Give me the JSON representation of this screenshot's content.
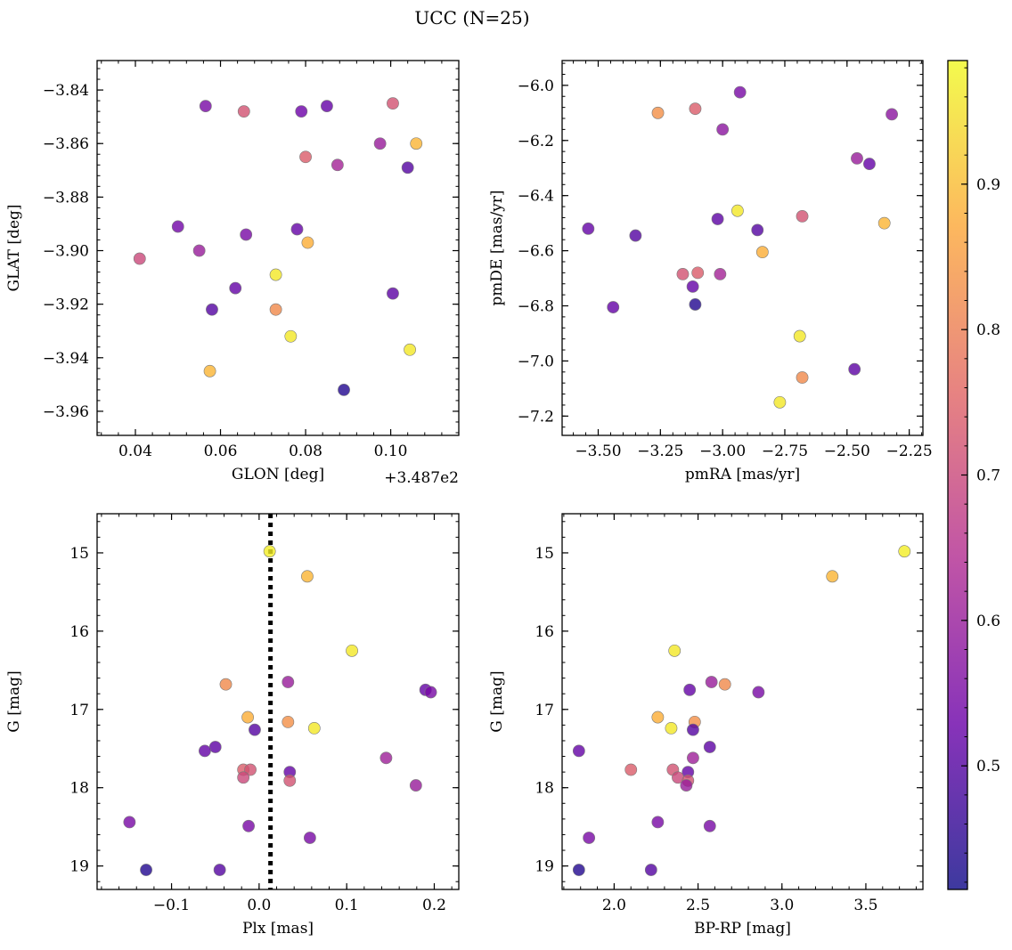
{
  "figure": {
    "title": "UCC (N=25)",
    "offset_label": "+3.487e2"
  },
  "colorbar": {
    "range": [
      0.415,
      0.985
    ],
    "ticks": [
      0.5,
      0.6,
      0.7,
      0.8,
      0.9
    ],
    "tick_labels": [
      "0.5",
      "0.6",
      "0.7",
      "0.8",
      "0.9"
    ],
    "colormap": [
      "#0d0887",
      "#6a00a8",
      "#b12a90",
      "#e16462",
      "#fca636",
      "#f0f921"
    ],
    "alpha": 0.8
  },
  "chart_data": [
    {
      "type": "scatter",
      "name": "glon-glat",
      "xlabel": "GLON [deg]",
      "ylabel": "GLAT [deg]",
      "xlim": [
        0.031,
        0.116
      ],
      "ylim": [
        -3.969,
        -3.829
      ],
      "y_inverted": false,
      "xticks": [
        0.04,
        0.06,
        0.08,
        0.1
      ],
      "xtick_labels": [
        "0.04",
        "0.06",
        "0.08",
        "0.10"
      ],
      "yticks": [
        -3.84,
        -3.86,
        -3.88,
        -3.9,
        -3.92,
        -3.94,
        -3.96
      ],
      "ytick_labels": [
        "−3.84",
        "−3.86",
        "−3.88",
        "−3.90",
        "−3.92",
        "−3.94",
        "−3.96"
      ],
      "points": [
        {
          "x": 0.0565,
          "y": -3.846,
          "c": 0.55
        },
        {
          "x": 0.0655,
          "y": -3.848,
          "c": 0.72
        },
        {
          "x": 0.079,
          "y": -3.848,
          "c": 0.53
        },
        {
          "x": 0.085,
          "y": -3.846,
          "c": 0.52
        },
        {
          "x": 0.1005,
          "y": -3.845,
          "c": 0.72
        },
        {
          "x": 0.0975,
          "y": -3.86,
          "c": 0.6
        },
        {
          "x": 0.106,
          "y": -3.86,
          "c": 0.89
        },
        {
          "x": 0.08,
          "y": -3.865,
          "c": 0.74
        },
        {
          "x": 0.0875,
          "y": -3.868,
          "c": 0.62
        },
        {
          "x": 0.104,
          "y": -3.869,
          "c": 0.5
        },
        {
          "x": 0.05,
          "y": -3.891,
          "c": 0.54
        },
        {
          "x": 0.066,
          "y": -3.894,
          "c": 0.55
        },
        {
          "x": 0.078,
          "y": -3.892,
          "c": 0.52
        },
        {
          "x": 0.0805,
          "y": -3.897,
          "c": 0.88
        },
        {
          "x": 0.055,
          "y": -3.9,
          "c": 0.6
        },
        {
          "x": 0.041,
          "y": -3.903,
          "c": 0.7
        },
        {
          "x": 0.073,
          "y": -3.909,
          "c": 0.96
        },
        {
          "x": 0.0635,
          "y": -3.914,
          "c": 0.52
        },
        {
          "x": 0.1005,
          "y": -3.916,
          "c": 0.51
        },
        {
          "x": 0.058,
          "y": -3.922,
          "c": 0.5
        },
        {
          "x": 0.073,
          "y": -3.922,
          "c": 0.82
        },
        {
          "x": 0.0765,
          "y": -3.932,
          "c": 0.96
        },
        {
          "x": 0.1045,
          "y": -3.937,
          "c": 0.96
        },
        {
          "x": 0.0575,
          "y": -3.945,
          "c": 0.89
        },
        {
          "x": 0.089,
          "y": -3.952,
          "c": 0.44
        }
      ]
    },
    {
      "type": "scatter",
      "name": "pmra-pmde",
      "xlabel": "pmRA [mas/yr]",
      "ylabel": "pmDE [mas/yr]",
      "xlim": [
        -3.645,
        -2.195
      ],
      "ylim": [
        -7.27,
        -5.91
      ],
      "y_inverted": false,
      "xticks": [
        -3.5,
        -3.25,
        -3.0,
        -2.75,
        -2.5,
        -2.25
      ],
      "xtick_labels": [
        "−3.50",
        "−3.25",
        "−3.00",
        "−2.75",
        "−2.50",
        "−2.25"
      ],
      "yticks": [
        -6.0,
        -6.2,
        -6.4,
        -6.6,
        -6.8,
        -7.0,
        -7.2
      ],
      "ytick_labels": [
        "−6.0",
        "−6.2",
        "−6.4",
        "−6.6",
        "−6.8",
        "−7.0",
        "−7.2"
      ],
      "points": [
        {
          "x": -2.93,
          "y": -6.025,
          "c": 0.55
        },
        {
          "x": -3.26,
          "y": -6.1,
          "c": 0.83
        },
        {
          "x": -3.11,
          "y": -6.085,
          "c": 0.74
        },
        {
          "x": -2.32,
          "y": -6.105,
          "c": 0.58
        },
        {
          "x": -3.0,
          "y": -6.16,
          "c": 0.58
        },
        {
          "x": -2.46,
          "y": -6.265,
          "c": 0.6
        },
        {
          "x": -2.41,
          "y": -6.285,
          "c": 0.52
        },
        {
          "x": -2.94,
          "y": -6.455,
          "c": 0.96
        },
        {
          "x": -2.68,
          "y": -6.475,
          "c": 0.72
        },
        {
          "x": -2.35,
          "y": -6.5,
          "c": 0.89
        },
        {
          "x": -3.02,
          "y": -6.485,
          "c": 0.51
        },
        {
          "x": -2.86,
          "y": -6.525,
          "c": 0.5
        },
        {
          "x": -3.54,
          "y": -6.52,
          "c": 0.52
        },
        {
          "x": -3.35,
          "y": -6.545,
          "c": 0.5
        },
        {
          "x": -2.84,
          "y": -6.605,
          "c": 0.88
        },
        {
          "x": -3.16,
          "y": -6.685,
          "c": 0.72
        },
        {
          "x": -3.1,
          "y": -6.68,
          "c": 0.74
        },
        {
          "x": -3.01,
          "y": -6.685,
          "c": 0.62
        },
        {
          "x": -3.12,
          "y": -6.73,
          "c": 0.52
        },
        {
          "x": -3.44,
          "y": -6.805,
          "c": 0.52
        },
        {
          "x": -3.11,
          "y": -6.795,
          "c": 0.44
        },
        {
          "x": -2.69,
          "y": -6.91,
          "c": 0.96
        },
        {
          "x": -2.47,
          "y": -7.03,
          "c": 0.51
        },
        {
          "x": -2.68,
          "y": -7.06,
          "c": 0.82
        },
        {
          "x": -2.77,
          "y": -7.15,
          "c": 0.96
        }
      ]
    },
    {
      "type": "scatter",
      "name": "plx-g",
      "xlabel": "Plx [mas]",
      "ylabel": "G [mag]",
      "xlim": [
        -0.185,
        0.228
      ],
      "ylim": [
        14.5,
        19.3
      ],
      "y_inverted": true,
      "vline": {
        "x": 0.013,
        "style": "dotted"
      },
      "xticks": [
        -0.1,
        0.0,
        0.1,
        0.2
      ],
      "xtick_labels": [
        "−0.1",
        "0.0",
        "0.1",
        "0.2"
      ],
      "yticks": [
        15,
        16,
        17,
        18,
        19
      ],
      "ytick_labels": [
        "15",
        "16",
        "17",
        "18",
        "19"
      ],
      "points": [
        {
          "x": 0.012,
          "y": 14.98,
          "c": 0.97
        },
        {
          "x": 0.055,
          "y": 15.3,
          "c": 0.89
        },
        {
          "x": 0.106,
          "y": 16.25,
          "c": 0.96
        },
        {
          "x": 0.033,
          "y": 16.65,
          "c": 0.6
        },
        {
          "x": -0.038,
          "y": 16.68,
          "c": 0.82
        },
        {
          "x": 0.19,
          "y": 16.75,
          "c": 0.52
        },
        {
          "x": 0.196,
          "y": 16.78,
          "c": 0.55
        },
        {
          "x": -0.013,
          "y": 17.1,
          "c": 0.88
        },
        {
          "x": 0.033,
          "y": 17.16,
          "c": 0.83
        },
        {
          "x": 0.063,
          "y": 17.24,
          "c": 0.96
        },
        {
          "x": -0.005,
          "y": 17.26,
          "c": 0.5
        },
        {
          "x": -0.05,
          "y": 17.48,
          "c": 0.51
        },
        {
          "x": -0.062,
          "y": 17.53,
          "c": 0.52
        },
        {
          "x": 0.145,
          "y": 17.62,
          "c": 0.61
        },
        {
          "x": -0.018,
          "y": 17.77,
          "c": 0.74
        },
        {
          "x": -0.01,
          "y": 17.77,
          "c": 0.72
        },
        {
          "x": 0.035,
          "y": 17.8,
          "c": 0.52
        },
        {
          "x": -0.018,
          "y": 17.87,
          "c": 0.7
        },
        {
          "x": 0.035,
          "y": 17.91,
          "c": 0.72
        },
        {
          "x": 0.179,
          "y": 17.97,
          "c": 0.6
        },
        {
          "x": -0.148,
          "y": 18.44,
          "c": 0.55
        },
        {
          "x": -0.012,
          "y": 18.49,
          "c": 0.55
        },
        {
          "x": 0.058,
          "y": 18.64,
          "c": 0.55
        },
        {
          "x": -0.129,
          "y": 19.05,
          "c": 0.44
        },
        {
          "x": -0.045,
          "y": 19.05,
          "c": 0.5
        }
      ]
    },
    {
      "type": "scatter",
      "name": "bprp-g",
      "xlabel": "BP-RP [mag]",
      "ylabel": "G [mag]",
      "xlim": [
        1.69,
        3.84
      ],
      "ylim": [
        14.5,
        19.3
      ],
      "y_inverted": true,
      "xticks": [
        2.0,
        2.5,
        3.0,
        3.5
      ],
      "xtick_labels": [
        "2.0",
        "2.5",
        "3.0",
        "3.5"
      ],
      "yticks": [
        15,
        16,
        17,
        18,
        19
      ],
      "ytick_labels": [
        "15",
        "16",
        "17",
        "18",
        "19"
      ],
      "points": [
        {
          "x": 3.73,
          "y": 14.98,
          "c": 0.97
        },
        {
          "x": 3.3,
          "y": 15.3,
          "c": 0.89
        },
        {
          "x": 2.36,
          "y": 16.25,
          "c": 0.96
        },
        {
          "x": 2.58,
          "y": 16.65,
          "c": 0.6
        },
        {
          "x": 2.66,
          "y": 16.68,
          "c": 0.82
        },
        {
          "x": 2.45,
          "y": 16.75,
          "c": 0.52
        },
        {
          "x": 2.86,
          "y": 16.78,
          "c": 0.55
        },
        {
          "x": 2.26,
          "y": 17.1,
          "c": 0.88
        },
        {
          "x": 2.48,
          "y": 17.16,
          "c": 0.83
        },
        {
          "x": 2.34,
          "y": 17.24,
          "c": 0.96
        },
        {
          "x": 2.47,
          "y": 17.26,
          "c": 0.5
        },
        {
          "x": 2.57,
          "y": 17.48,
          "c": 0.51
        },
        {
          "x": 1.79,
          "y": 17.53,
          "c": 0.52
        },
        {
          "x": 2.47,
          "y": 17.62,
          "c": 0.61
        },
        {
          "x": 2.1,
          "y": 17.77,
          "c": 0.74
        },
        {
          "x": 2.35,
          "y": 17.77,
          "c": 0.72
        },
        {
          "x": 2.44,
          "y": 17.8,
          "c": 0.52
        },
        {
          "x": 2.38,
          "y": 17.87,
          "c": 0.7
        },
        {
          "x": 2.44,
          "y": 17.91,
          "c": 0.72
        },
        {
          "x": 2.43,
          "y": 17.97,
          "c": 0.6
        },
        {
          "x": 2.26,
          "y": 18.44,
          "c": 0.55
        },
        {
          "x": 2.57,
          "y": 18.49,
          "c": 0.55
        },
        {
          "x": 1.85,
          "y": 18.64,
          "c": 0.55
        },
        {
          "x": 1.79,
          "y": 19.05,
          "c": 0.44
        },
        {
          "x": 2.22,
          "y": 19.05,
          "c": 0.5
        }
      ]
    }
  ]
}
